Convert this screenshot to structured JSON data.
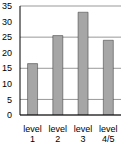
{
  "chart_data": {
    "type": "bar",
    "categories": [
      "level 1",
      "level 2",
      "level 3",
      "level 4/5"
    ],
    "values": [
      16.5,
      25.5,
      33,
      24
    ],
    "color": "#a6a6a6",
    "ylim": [
      0,
      35
    ],
    "yticks": [
      0,
      5,
      10,
      15,
      20,
      25,
      30,
      35
    ],
    "grid": true
  }
}
